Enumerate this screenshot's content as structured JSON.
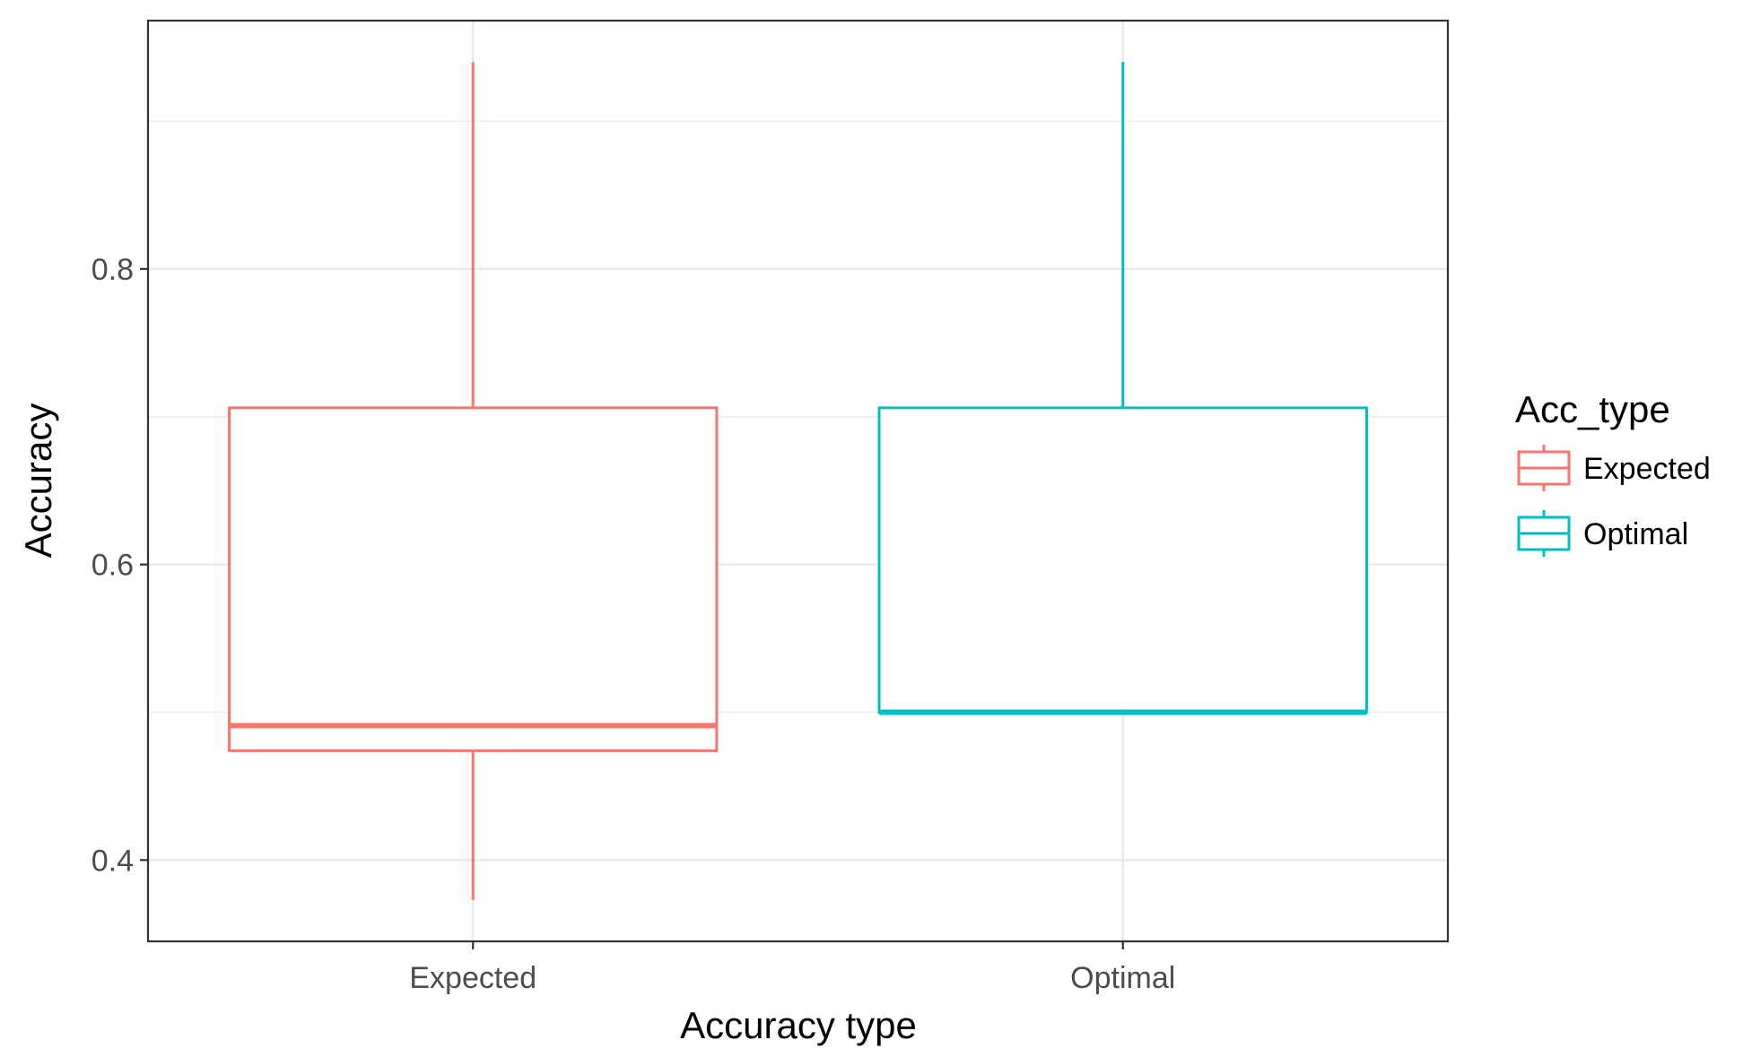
{
  "chart_data": {
    "type": "boxplot",
    "xlabel": "Accuracy type",
    "ylabel": "Accuracy",
    "categories": [
      "Expected",
      "Optimal"
    ],
    "yticks": [
      0.4,
      0.6,
      0.8
    ],
    "ytick_labels": [
      "0.4",
      "0.6",
      "0.8"
    ],
    "ylim": [
      0.345,
      0.968
    ],
    "grid": true,
    "legend": {
      "title": "Acc_type",
      "position": "right",
      "entries": [
        "Expected",
        "Optimal"
      ]
    },
    "series": [
      {
        "name": "Expected",
        "color": "#F8766D",
        "whisker_low": 0.373,
        "q1": 0.474,
        "median": 0.491,
        "q3": 0.706,
        "whisker_high": 0.94
      },
      {
        "name": "Optimal",
        "color": "#00BFC4",
        "whisker_low": 0.5,
        "q1": 0.5,
        "median": 0.5,
        "q3": 0.706,
        "whisker_high": 0.94
      }
    ]
  }
}
